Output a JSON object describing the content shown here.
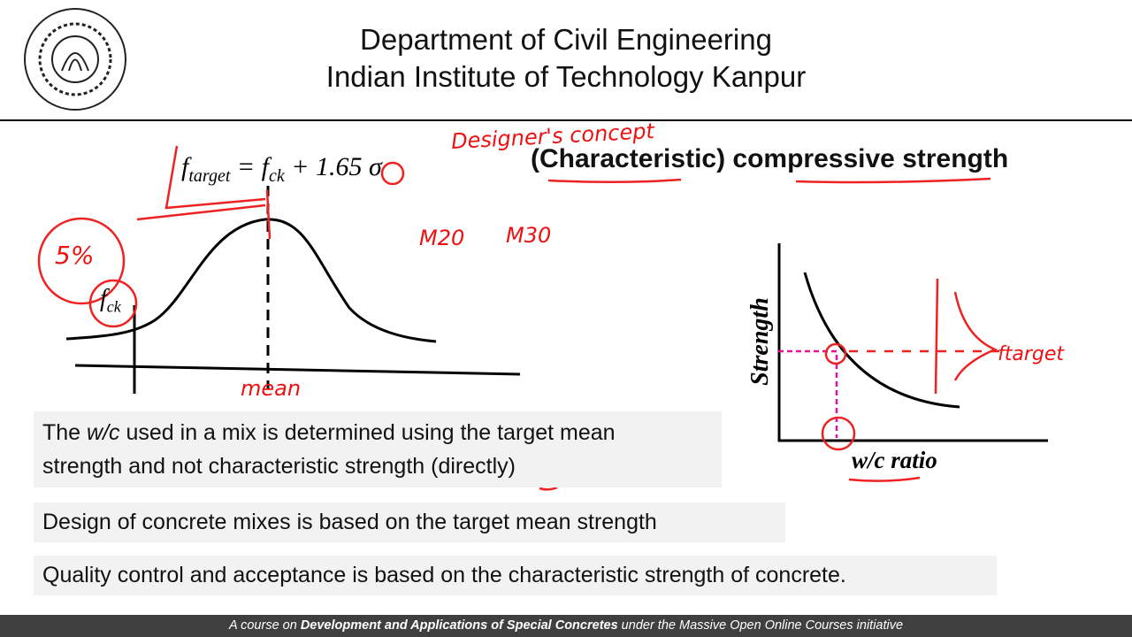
{
  "header": {
    "line1": "Department of Civil Engineering",
    "line2": "Indian Institute of Technology Kanpur"
  },
  "slide": {
    "heading": "(Characteristic) compressive strength",
    "formula": {
      "f1": "f",
      "sub1": "target",
      "eq": " = ",
      "f2": "f",
      "sub2": "ck",
      "rest": " + 1.65 σ"
    },
    "bell_label": {
      "f": "f",
      "sub": "ck"
    },
    "graph": {
      "y_label": "Strength",
      "x_label": "w/c ratio"
    },
    "annotations": {
      "concept": "Designer's concept",
      "mean": "mean",
      "m20": "M20",
      "m30": "M30",
      "target": "ftarget",
      "percent": "5%"
    },
    "bullets": [
      [
        "The ",
        "w/c",
        " used in a mix is determined using the target mean",
        "strength and not characteristic strength (directly)"
      ],
      [
        "Design of concrete mixes is based on the target mean strength"
      ],
      [
        "Quality control and acceptance is based on the characteristic strength of concrete."
      ]
    ]
  },
  "footer": [
    "A course on ",
    "Development and Applications of Special Concretes",
    " under the Massive Open Online Courses initiative"
  ]
}
